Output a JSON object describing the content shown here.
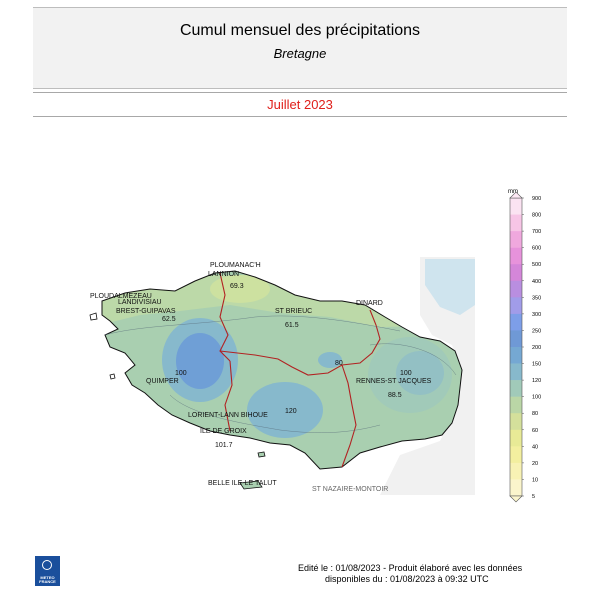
{
  "header": {
    "title": "Cumul mensuel des précipitations",
    "subtitle": "Bretagne"
  },
  "period": "Juillet 2023",
  "colorbar": {
    "unit": "mm",
    "ticks": [
      "900",
      "800",
      "700",
      "600",
      "500",
      "400",
      "350",
      "300",
      "250",
      "200",
      "150",
      "120",
      "100",
      "80",
      "60",
      "40",
      "20",
      "10",
      "5"
    ],
    "colors": [
      "#fbe3f2",
      "#f7c5e6",
      "#f0a8de",
      "#e792db",
      "#d486d9",
      "#b98ee0",
      "#a19ce9",
      "#7d9ee8",
      "#6f99d6",
      "#75a8d3",
      "#87b9cc",
      "#a1cab9",
      "#bad6a6",
      "#d4e09b",
      "#e8ea96",
      "#f3ef9f",
      "#f8f2b4",
      "#fbf5cc"
    ]
  },
  "map": {
    "stations": [
      {
        "name": "PLOUMANAC'H",
        "value": ""
      },
      {
        "name": "LANNION",
        "value": "69.3"
      },
      {
        "name": "PLOUDALMEZEAU",
        "value": ""
      },
      {
        "name": "LANDIVISIAU",
        "value": ""
      },
      {
        "name": "BREST-GUIPAVAS",
        "value": "62.5"
      },
      {
        "name": "ST BRIEUC",
        "value": "61.5"
      },
      {
        "name": "DINARD",
        "value": ""
      },
      {
        "name": "QUIMPER",
        "value": ""
      },
      {
        "name": "RENNES-ST JACQUES",
        "value": "88.5"
      },
      {
        "name": "LORIENT-LANN BIHOUE",
        "value": ""
      },
      {
        "name": "ILE DE GROIX",
        "value": "101.7"
      },
      {
        "name": "BELLE ILE-LE TALUT",
        "value": ""
      },
      {
        "name": "ST NAZAIRE-MONTOIR",
        "value": ""
      }
    ],
    "contour_labels": [
      "100",
      "120",
      "80",
      "100"
    ]
  },
  "footer": {
    "line1": "Edité le : 01/08/2023 - Produit élaboré avec les données",
    "line2": "disponibles du : 01/08/2023 à 09:32 UTC"
  },
  "logo": {
    "text": "METEO FRANCE",
    "icon": "meteo-france-logo"
  }
}
